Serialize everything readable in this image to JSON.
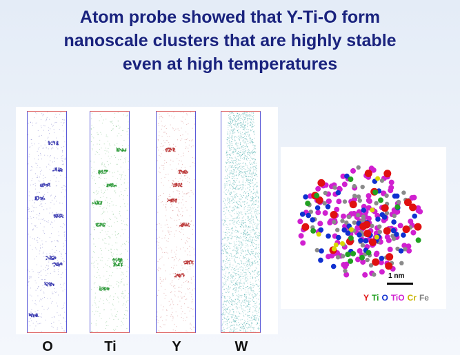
{
  "title": {
    "line1": "Atom probe showed that Y-Ti-O form",
    "line2": "nanoscale clusters that are highly stable",
    "line3": "even at high temperatures"
  },
  "probe_maps": [
    {
      "label": "O",
      "color": "#3a3ab0",
      "hot_rows": [
        14,
        26,
        33,
        39,
        47,
        66,
        69,
        78,
        92
      ]
    },
    {
      "label": "Ti",
      "color": "#2e9a3a",
      "hot_rows": [
        17,
        27,
        33,
        41,
        51,
        67,
        69,
        80
      ]
    },
    {
      "label": "Y",
      "color": "#b83030",
      "hot_rows": [
        17,
        27,
        33,
        40,
        51,
        68,
        74
      ]
    },
    {
      "label": "W",
      "color": "#3fa7a7",
      "hot_rows": []
    }
  ],
  "cluster": {
    "scale_label": "1 nm",
    "legend": [
      {
        "text": "Y",
        "color": "#e01010"
      },
      {
        "text": "Ti",
        "color": "#22a022"
      },
      {
        "text": "O",
        "color": "#1030d0"
      },
      {
        "text": "TiO",
        "color": "#d020d0"
      },
      {
        "text": "Cr",
        "color": "#c8b400"
      },
      {
        "text": "Fe",
        "color": "#808080"
      }
    ]
  }
}
